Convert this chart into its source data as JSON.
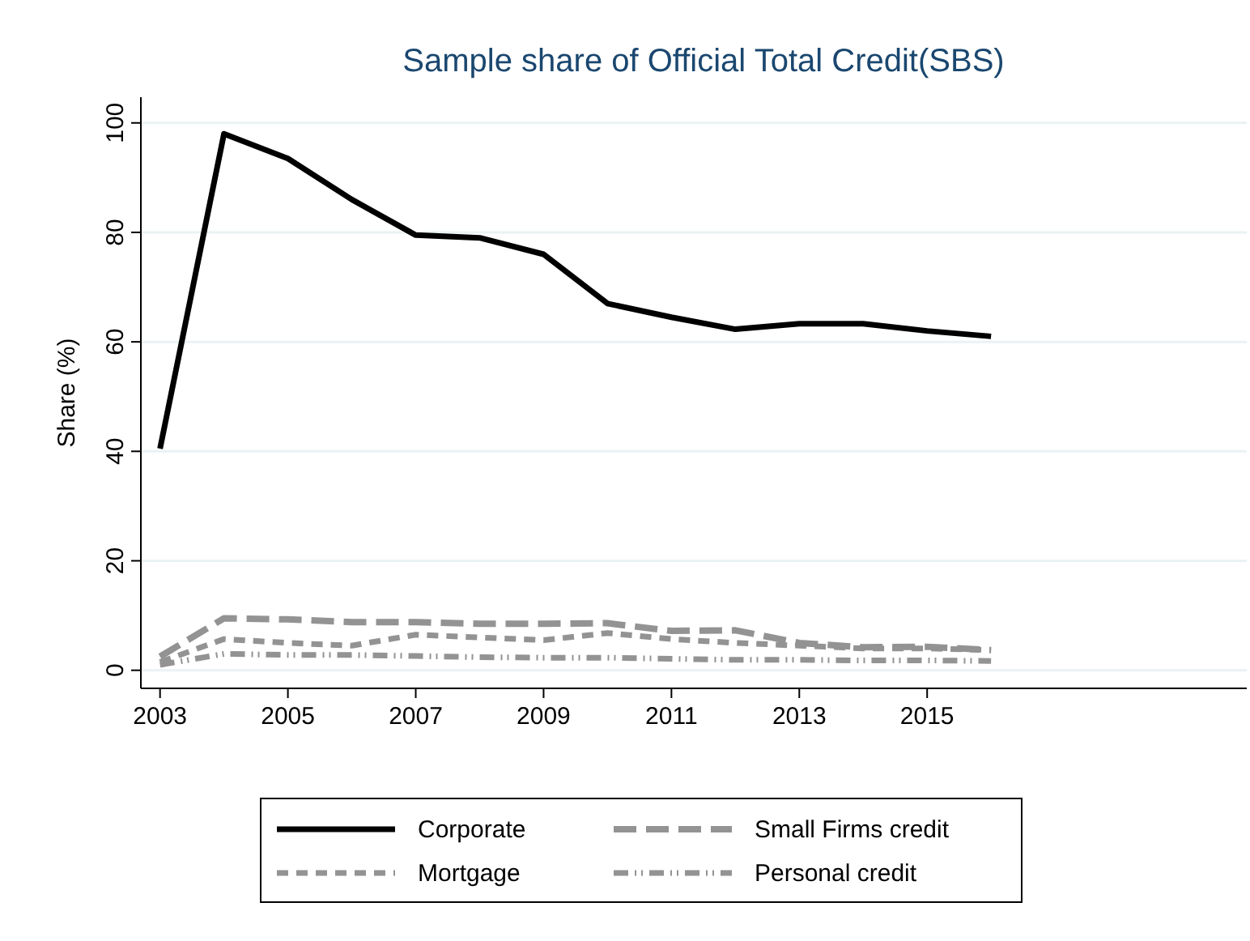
{
  "chart_data": {
    "type": "line",
    "title": "Sample share of Official Total Credit(SBS)",
    "ylabel": "Share (%)",
    "x": [
      2003,
      2004,
      2005,
      2006,
      2007,
      2008,
      2009,
      2010,
      2011,
      2012,
      2013,
      2014,
      2015,
      2016
    ],
    "xlim": [
      2002.7,
      2020
    ],
    "xticks": [
      2003,
      2005,
      2007,
      2009,
      2011,
      2013,
      2015
    ],
    "ylim": [
      -3.3,
      104.7
    ],
    "yticks": [
      0,
      20,
      40,
      60,
      80,
      100
    ],
    "grid": "y",
    "legend": "bottom",
    "series": [
      {
        "name": "Corporate",
        "color": "#000000",
        "line_style": "solid",
        "values": [
          40.5,
          98,
          93.5,
          86,
          79.5,
          79,
          76,
          67,
          64.5,
          62.3,
          63.3,
          63.3,
          62,
          61
        ]
      },
      {
        "name": "Small Firms credit",
        "color": "#939393",
        "line_style": "dashed",
        "values": [
          2.5,
          9.5,
          9.3,
          8.8,
          8.8,
          8.5,
          8.5,
          8.6,
          7.2,
          7.3,
          5,
          4.2,
          4.3,
          3.7
        ]
      },
      {
        "name": "Mortgage",
        "color": "#939393",
        "line_style": "dotted",
        "values": [
          1.5,
          5.7,
          5,
          4.5,
          6.5,
          6,
          5.5,
          6.8,
          5.7,
          5,
          4.5,
          4,
          4,
          3.7
        ]
      },
      {
        "name": "Personal credit",
        "color": "#939393",
        "line_style": "dashdot",
        "values": [
          1,
          3,
          2.8,
          2.8,
          2.6,
          2.4,
          2.3,
          2.3,
          2.1,
          1.9,
          1.9,
          1.8,
          1.8,
          1.7
        ]
      }
    ]
  }
}
